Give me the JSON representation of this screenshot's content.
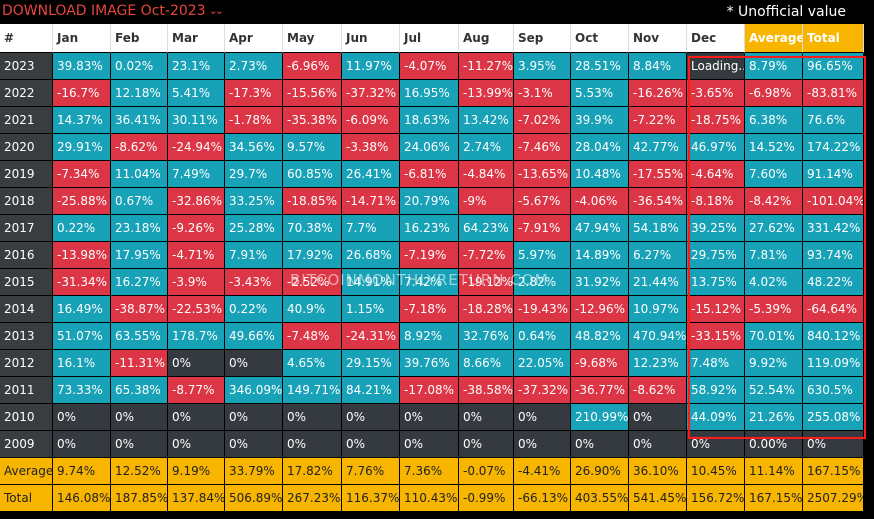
{
  "header": {
    "download_label": "DOWNLOAD IMAGE Oct-2023",
    "download_icon": "double-chevron-down-icon",
    "note": "* Unofficial value"
  },
  "watermark": "BITCOINMONTHLYRETURN.COM",
  "colors": {
    "positive": "#17a2b8",
    "negative": "#dc3545",
    "neutral": "#343a40",
    "accent": "#f7b500",
    "header_text_accent": "#e8453c",
    "highlight_border": "#ff1a1a"
  },
  "chart_data": {
    "type": "table",
    "columns": [
      "#",
      "Jan",
      "Feb",
      "Mar",
      "Apr",
      "May",
      "Jun",
      "Jul",
      "Aug",
      "Sep",
      "Oct",
      "Nov",
      "Dec",
      "Average",
      "Total"
    ],
    "rows": [
      {
        "label": "2023",
        "cells": [
          "39.83%",
          "0.02%",
          "23.1%",
          "2.73%",
          "-6.96%",
          "11.97%",
          "-4.07%",
          "-11.27%",
          "3.95%",
          "28.51%",
          "8.84%",
          "Loading...",
          "8.79%",
          "96.65%"
        ]
      },
      {
        "label": "2022",
        "cells": [
          "-16.7%",
          "12.18%",
          "5.41%",
          "-17.3%",
          "-15.56%",
          "-37.32%",
          "16.95%",
          "-13.99%",
          "-3.1%",
          "5.53%",
          "-16.26%",
          "-3.65%",
          "-6.98%",
          "-83.81%"
        ]
      },
      {
        "label": "2021",
        "cells": [
          "14.37%",
          "36.41%",
          "30.11%",
          "-1.78%",
          "-35.38%",
          "-6.09%",
          "18.63%",
          "13.42%",
          "-7.02%",
          "39.9%",
          "-7.22%",
          "-18.75%",
          "6.38%",
          "76.6%"
        ]
      },
      {
        "label": "2020",
        "cells": [
          "29.91%",
          "-8.62%",
          "-24.94%",
          "34.56%",
          "9.57%",
          "-3.38%",
          "24.06%",
          "2.74%",
          "-7.46%",
          "28.04%",
          "42.77%",
          "46.97%",
          "14.52%",
          "174.22%"
        ]
      },
      {
        "label": "2019",
        "cells": [
          "-7.34%",
          "11.04%",
          "7.49%",
          "29.7%",
          "60.85%",
          "26.41%",
          "-6.81%",
          "-4.84%",
          "-13.65%",
          "10.48%",
          "-17.55%",
          "-4.64%",
          "7.60%",
          "91.14%"
        ]
      },
      {
        "label": "2018",
        "cells": [
          "-25.88%",
          "0.67%",
          "-32.86%",
          "33.25%",
          "-18.85%",
          "-14.71%",
          "20.79%",
          "-9%",
          "-5.67%",
          "-4.06%",
          "-36.54%",
          "-8.18%",
          "-8.42%",
          "-101.04%"
        ]
      },
      {
        "label": "2017",
        "cells": [
          "0.22%",
          "23.18%",
          "-9.26%",
          "25.28%",
          "70.38%",
          "7.7%",
          "16.23%",
          "64.23%",
          "-7.91%",
          "47.94%",
          "54.18%",
          "39.25%",
          "27.62%",
          "331.42%"
        ]
      },
      {
        "label": "2016",
        "cells": [
          "-13.98%",
          "17.95%",
          "-4.71%",
          "7.91%",
          "17.92%",
          "26.68%",
          "-7.19%",
          "-7.72%",
          "5.97%",
          "14.89%",
          "6.27%",
          "29.75%",
          "7.81%",
          "93.74%"
        ]
      },
      {
        "label": "2015",
        "cells": [
          "-31.34%",
          "16.27%",
          "-3.9%",
          "-3.43%",
          "-2.52%",
          "14.91%",
          "7.42%",
          "-19.12%",
          "2.82%",
          "31.92%",
          "21.44%",
          "13.75%",
          "4.02%",
          "48.22%"
        ]
      },
      {
        "label": "2014",
        "cells": [
          "16.49%",
          "-38.87%",
          "-22.53%",
          "0.22%",
          "40.9%",
          "1.15%",
          "-7.18%",
          "-18.28%",
          "-19.43%",
          "-12.96%",
          "10.97%",
          "-15.12%",
          "-5.39%",
          "-64.64%"
        ]
      },
      {
        "label": "2013",
        "cells": [
          "51.07%",
          "63.55%",
          "178.7%",
          "49.66%",
          "-7.48%",
          "-24.31%",
          "8.92%",
          "32.76%",
          "0.64%",
          "48.82%",
          "470.94%",
          "-33.15%",
          "70.01%",
          "840.12%"
        ]
      },
      {
        "label": "2012",
        "cells": [
          "16.1%",
          "-11.31%",
          "0%",
          "0%",
          "4.65%",
          "29.15%",
          "39.76%",
          "8.66%",
          "22.05%",
          "-9.68%",
          "12.23%",
          "7.48%",
          "9.92%",
          "119.09%"
        ]
      },
      {
        "label": "2011",
        "cells": [
          "73.33%",
          "65.38%",
          "-8.77%",
          "346.09%",
          "149.71%",
          "84.21%",
          "-17.08%",
          "-38.58%",
          "-37.32%",
          "-36.77%",
          "-8.62%",
          "58.92%",
          "52.54%",
          "630.5%"
        ]
      },
      {
        "label": "2010",
        "cells": [
          "0%",
          "0%",
          "0%",
          "0%",
          "0%",
          "0%",
          "0%",
          "0%",
          "0%",
          "210.99%",
          "0%",
          "44.09%",
          "21.26%",
          "255.08%"
        ]
      },
      {
        "label": "2009",
        "cells": [
          "0%",
          "0%",
          "0%",
          "0%",
          "0%",
          "0%",
          "0%",
          "0%",
          "0%",
          "0%",
          "0%",
          "0%",
          "0.00%",
          "0%"
        ]
      }
    ],
    "footer": [
      {
        "label": "Average",
        "cells": [
          "9.74%",
          "12.52%",
          "9.19%",
          "33.79%",
          "17.82%",
          "7.76%",
          "7.36%",
          "-0.07%",
          "-4.41%",
          "26.90%",
          "36.10%",
          "10.45%",
          "11.14%",
          "167.15%"
        ]
      },
      {
        "label": "Total",
        "cells": [
          "146.08%",
          "187.85%",
          "137.84%",
          "506.89%",
          "267.23%",
          "116.37%",
          "110.43%",
          "-0.99%",
          "-66.13%",
          "403.55%",
          "541.45%",
          "156.72%",
          "167.15%",
          "2507.29%"
        ]
      }
    ]
  }
}
